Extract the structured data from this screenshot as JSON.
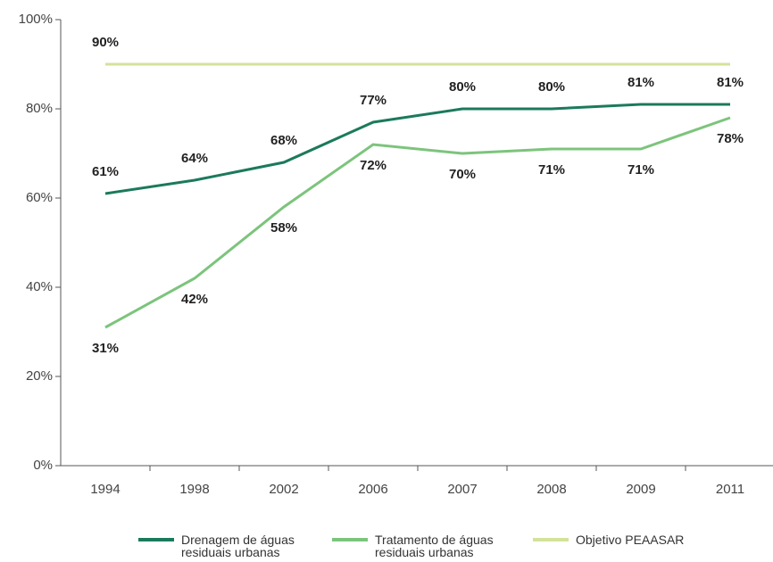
{
  "chart_data": {
    "type": "line",
    "categories": [
      "1994",
      "1998",
      "2002",
      "2006",
      "2007",
      "2008",
      "2009",
      "2011"
    ],
    "series": [
      {
        "name": "Drenagem de águas residuais urbanas",
        "color": "#1b7a5c",
        "label_side": "above",
        "values": [
          61,
          64,
          68,
          77,
          80,
          80,
          81,
          81
        ],
        "value_labels": [
          "61%",
          "64%",
          "68%",
          "77%",
          "80%",
          "80%",
          "81%",
          "81%"
        ]
      },
      {
        "name": "Tratamento de águas residuais urbanas",
        "color": "#7cc47c",
        "label_side": "below",
        "values": [
          31,
          42,
          58,
          72,
          70,
          71,
          71,
          78
        ],
        "value_labels": [
          "31%",
          "42%",
          "58%",
          "72%",
          "70%",
          "71%",
          "71%",
          "78%"
        ]
      },
      {
        "name": "Objetivo PEAASAR",
        "color": "#d3e29b",
        "label_side": "above",
        "values": [
          90,
          90,
          90,
          90,
          90,
          90,
          90,
          90
        ],
        "value_labels": [
          "90%",
          null,
          null,
          null,
          null,
          null,
          null,
          null
        ]
      }
    ],
    "ylim": [
      0,
      100
    ],
    "yticks": [
      {
        "value": 0,
        "label": "0%"
      },
      {
        "value": 20,
        "label": "20%"
      },
      {
        "value": 40,
        "label": "40%"
      },
      {
        "value": 60,
        "label": "60%"
      },
      {
        "value": 80,
        "label": "80%"
      },
      {
        "value": 100,
        "label": "100%"
      }
    ],
    "legend": "bottom"
  }
}
